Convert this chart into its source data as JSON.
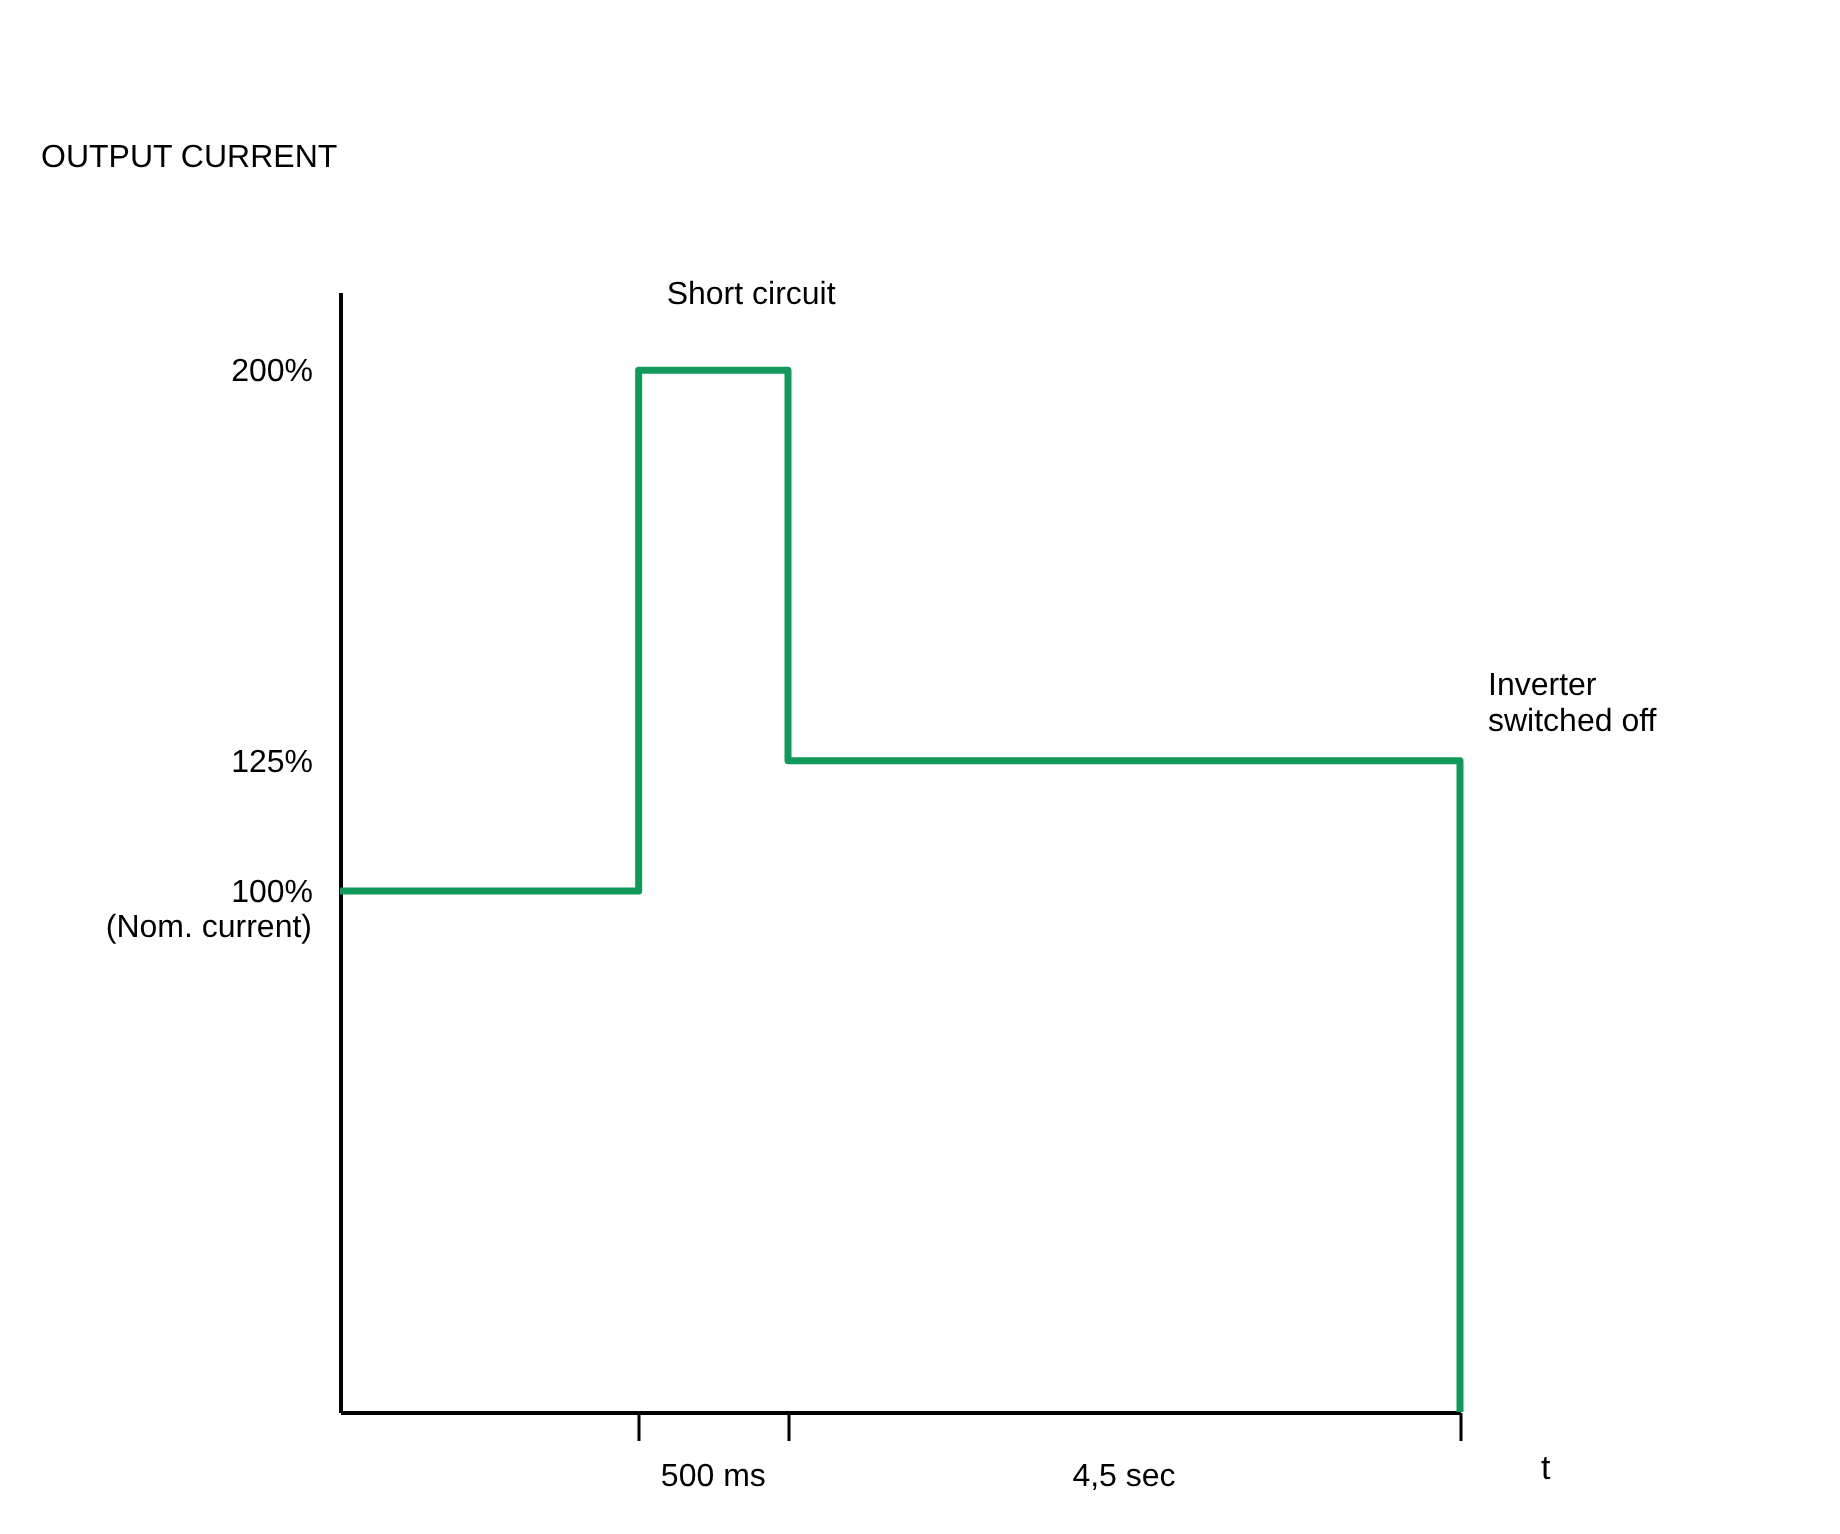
{
  "chart_data": {
    "type": "step",
    "xlabel": "t",
    "ylabel": "OUTPUT CURRENT",
    "categories": [
      null,
      null,
      null,
      null,
      null,
      null,
      null,
      null,
      null,
      null,
      null,
      null,
      null,
      null,
      null,
      null
    ],
    "series": [
      {
        "color": "#12985a",
        "values": [
          100,
          100,
          100,
          100,
          200,
          200,
          125,
          125,
          125,
          125,
          125,
          125,
          125,
          125,
          125,
          0
        ]
      }
    ],
    "ylim": [
      0,
      215
    ],
    "yticks": [
      {
        "value": 100,
        "label": "100%"
      },
      {
        "value": 125,
        "label": "125%"
      },
      {
        "value": 200,
        "label": "200%"
      }
    ],
    "tick_labels": "y",
    "grid": false,
    "line_style": "solid",
    "marker": "none",
    "annotations": [
      "Short circuit",
      "Inverter\nswitched off",
      "500 ms",
      "4,5 sec",
      "(Nom. current)"
    ]
  }
}
